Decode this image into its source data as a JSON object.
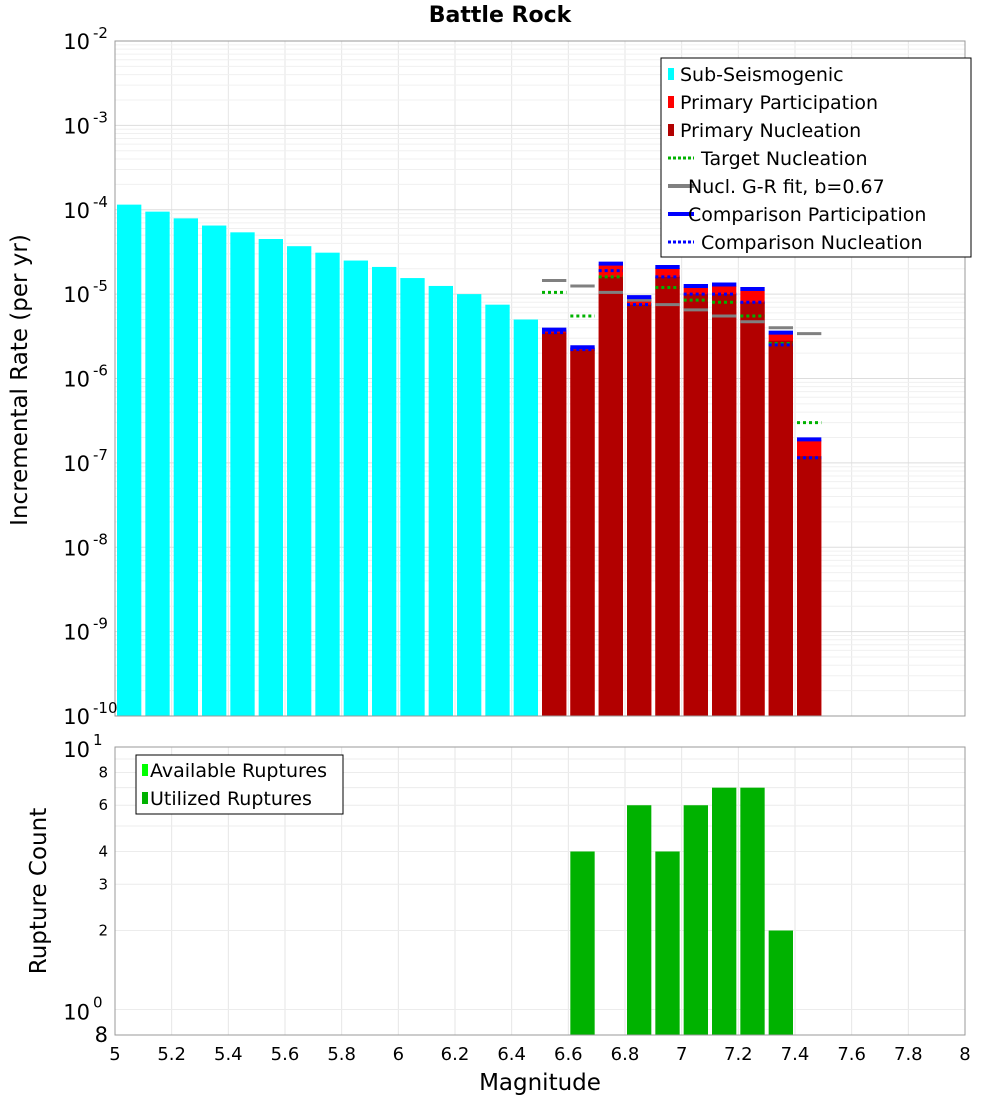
{
  "chart_data": [
    {
      "type": "bar",
      "title": "Battle Rock",
      "ylabel": "Incremental Rate (per yr)",
      "xlim": [
        5,
        8
      ],
      "ylim": [
        1e-10,
        0.01
      ],
      "yscale": "log",
      "y_ticks": [
        {
          "base": "10",
          "exp": "-2",
          "value": 0.01
        },
        {
          "base": "10",
          "exp": "-3",
          "value": 0.001
        },
        {
          "base": "10",
          "exp": "-4",
          "value": 0.0001
        },
        {
          "base": "10",
          "exp": "-5",
          "value": 1e-05
        },
        {
          "base": "10",
          "exp": "-6",
          "value": 1e-06
        },
        {
          "base": "10",
          "exp": "-7",
          "value": 1e-07
        },
        {
          "base": "10",
          "exp": "-8",
          "value": 1e-08
        },
        {
          "base": "10",
          "exp": "-9",
          "value": 1e-09
        },
        {
          "base": "10",
          "exp": "-10",
          "value": 1e-10
        }
      ],
      "legend": [
        {
          "label": "Sub-Seismogenic",
          "color": "#00ffff",
          "style": "box"
        },
        {
          "label": "Primary Participation",
          "color": "#ff0000",
          "style": "box"
        },
        {
          "label": "Primary Nucleation",
          "color": "#b20000",
          "style": "box"
        },
        {
          "label": "Target Nucleation",
          "color": "#00b200",
          "style": "dotted"
        },
        {
          "label": "Nucl. G-R fit, b=0.67",
          "color": "#808080",
          "style": "solid"
        },
        {
          "label": "Comparison Participation",
          "color": "#0000ff",
          "style": "solid"
        },
        {
          "label": "Comparison Nucleation",
          "color": "#0000ff",
          "style": "dotted"
        }
      ],
      "series": [
        {
          "name": "Sub-Seismogenic",
          "x": [
            5.05,
            5.15,
            5.25,
            5.35,
            5.45,
            5.55,
            5.65,
            5.75,
            5.85,
            5.95,
            6.05,
            6.15,
            6.25,
            6.35,
            6.45
          ],
          "values": [
            0.000115,
            9.5e-05,
            7.9e-05,
            6.5e-05,
            5.4e-05,
            4.5e-05,
            3.7e-05,
            3.1e-05,
            2.5e-05,
            2.1e-05,
            1.55e-05,
            1.25e-05,
            1e-05,
            7.5e-06,
            5e-06
          ]
        },
        {
          "name": "Primary Participation",
          "x": [
            6.55,
            6.65,
            6.75,
            6.85,
            6.95,
            7.05,
            7.15,
            7.25,
            7.35,
            7.45
          ],
          "values": [
            3.8e-06,
            2.35e-06,
            2.25e-05,
            9e-06,
            2.05e-05,
            1.2e-05,
            1.25e-05,
            1.1e-05,
            3.4e-06,
            1.85e-07
          ]
        },
        {
          "name": "Primary Nucleation",
          "x": [
            6.55,
            6.65,
            6.75,
            6.85,
            6.95,
            7.05,
            7.15,
            7.25,
            7.35,
            7.45
          ],
          "values": [
            3.5e-06,
            2.2e-06,
            1.6e-05,
            7.5e-06,
            1.6e-05,
            1e-05,
            1e-05,
            8e-06,
            2.8e-06,
            1.2e-07
          ]
        },
        {
          "name": "Target Nucleation",
          "x": [
            6.55,
            6.65,
            6.75,
            6.85,
            6.95,
            7.05,
            7.15,
            7.25,
            7.35,
            7.45
          ],
          "values": [
            1.05e-05,
            5.5e-06,
            1.6e-05,
            7.5e-06,
            1.2e-05,
            8.5e-06,
            8e-06,
            5.5e-06,
            2.6e-06,
            3e-07
          ]
        },
        {
          "name": "Nucl. G-R fit, b=0.67",
          "x": [
            6.55,
            6.65,
            6.75,
            6.85,
            6.95,
            7.05,
            7.15,
            7.25,
            7.35,
            7.45
          ],
          "values": [
            1.45e-05,
            1.25e-05,
            1.05e-05,
            8.5e-06,
            7.5e-06,
            6.5e-06,
            5.5e-06,
            4.7e-06,
            4e-06,
            3.4e-06
          ]
        },
        {
          "name": "Comparison Participation",
          "x": [
            6.55,
            6.65,
            6.75,
            6.85,
            6.95,
            7.05,
            7.15,
            7.25,
            7.35,
            7.45
          ],
          "values": [
            3.8e-06,
            2.35e-06,
            2.3e-05,
            9.2e-06,
            2.1e-05,
            1.25e-05,
            1.3e-05,
            1.15e-05,
            3.5e-06,
            1.9e-07
          ]
        },
        {
          "name": "Comparison Nucleation",
          "x": [
            6.55,
            6.65,
            6.75,
            6.85,
            6.95,
            7.05,
            7.15,
            7.25,
            7.35,
            7.45
          ],
          "values": [
            3.5e-06,
            2.2e-06,
            1.9e-05,
            7.5e-06,
            1.6e-05,
            1e-05,
            1e-05,
            8e-06,
            2.5e-06,
            1.15e-07
          ]
        }
      ]
    },
    {
      "type": "bar",
      "xlabel": "Magnitude",
      "ylabel": "Rupture Count",
      "xlim": [
        5,
        8
      ],
      "ylim": [
        0.8,
        10
      ],
      "yscale": "log",
      "x_ticks": [
        "5",
        "5.2",
        "5.4",
        "5.6",
        "5.8",
        "6",
        "6.2",
        "6.4",
        "6.6",
        "6.8",
        "7",
        "7.2",
        "7.4",
        "7.6",
        "7.8",
        "8"
      ],
      "y_major_ticks": [
        {
          "base": "10",
          "exp": "1",
          "value": 10
        },
        {
          "base": "10",
          "exp": "0",
          "value": 1
        }
      ],
      "y_minor_ticks": [
        "8",
        "6",
        "4",
        "3",
        "2",
        "8"
      ],
      "y_minor_values": [
        8,
        6,
        4,
        3,
        2,
        0.8
      ],
      "legend": [
        {
          "label": "Available Ruptures",
          "color": "#00ff00"
        },
        {
          "label": "Utilized Ruptures",
          "color": "#00b200"
        }
      ],
      "series": [
        {
          "name": "Utilized Ruptures",
          "x": [
            6.65,
            6.85,
            6.95,
            7.05,
            7.15,
            7.25,
            7.35
          ],
          "values": [
            4,
            6,
            4,
            6,
            7,
            7,
            2
          ]
        }
      ]
    }
  ]
}
